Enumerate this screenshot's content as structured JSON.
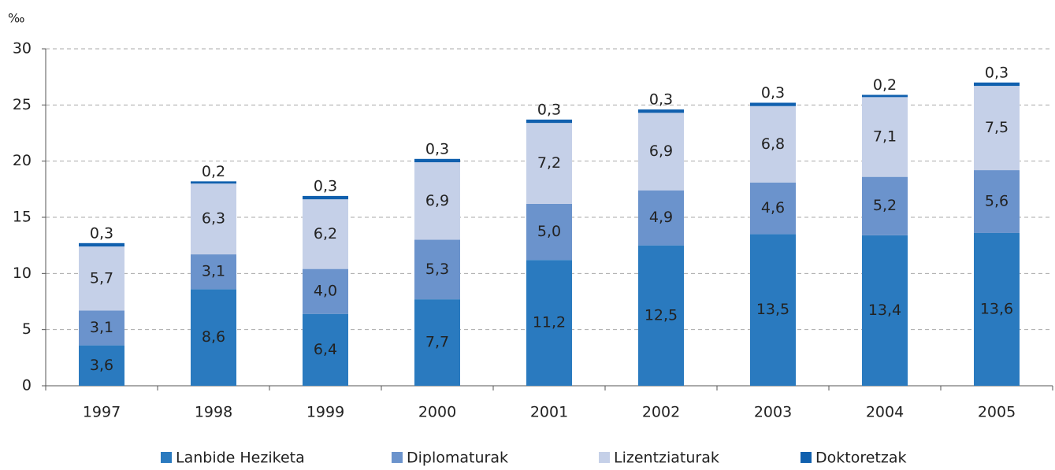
{
  "chart_data": {
    "type": "stacked_bar",
    "y_label": "‰",
    "categories": [
      "1997",
      "1998",
      "1999",
      "2000",
      "2001",
      "2002",
      "2003",
      "2004",
      "2005"
    ],
    "series": [
      {
        "name": "Lanbide Heziketa",
        "color": "#2a7abf",
        "values": [
          3.6,
          8.6,
          6.4,
          7.7,
          11.2,
          12.5,
          13.5,
          13.4,
          13.6
        ],
        "value_labels": [
          "3,6",
          "8,6",
          "6,4",
          "7,7",
          "11,2",
          "12,5",
          "13,5",
          "13,4",
          "13,6"
        ]
      },
      {
        "name": "Diplomaturak",
        "color": "#6b93cc",
        "values": [
          3.1,
          3.1,
          4.0,
          5.3,
          5.0,
          4.9,
          4.6,
          5.2,
          5.6
        ],
        "value_labels": [
          "3,1",
          "3,1",
          "4,0",
          "5,3",
          "5,0",
          "4,9",
          "4,6",
          "5,2",
          "5,6"
        ]
      },
      {
        "name": "Lizentziaturak",
        "color": "#c5d0e8",
        "values": [
          5.7,
          6.3,
          6.2,
          6.9,
          7.2,
          6.9,
          6.8,
          7.1,
          7.5
        ],
        "value_labels": [
          "5,7",
          "6,3",
          "6,2",
          "6,9",
          "7,2",
          "6,9",
          "6,8",
          "7,1",
          "7,5"
        ]
      },
      {
        "name": "Doktoretzak",
        "color": "#1060ae",
        "values": [
          0.3,
          0.2,
          0.3,
          0.3,
          0.3,
          0.3,
          0.3,
          0.2,
          0.3
        ],
        "value_labels": [
          "0,3",
          "0,2",
          "0,3",
          "0,3",
          "0,3",
          "0,3",
          "0,3",
          "0,2",
          "0,3"
        ]
      }
    ],
    "ylim": [
      0,
      30
    ],
    "yticks": [
      0,
      5,
      10,
      15,
      20,
      25,
      30
    ],
    "grid": true,
    "legend": "bottom"
  }
}
